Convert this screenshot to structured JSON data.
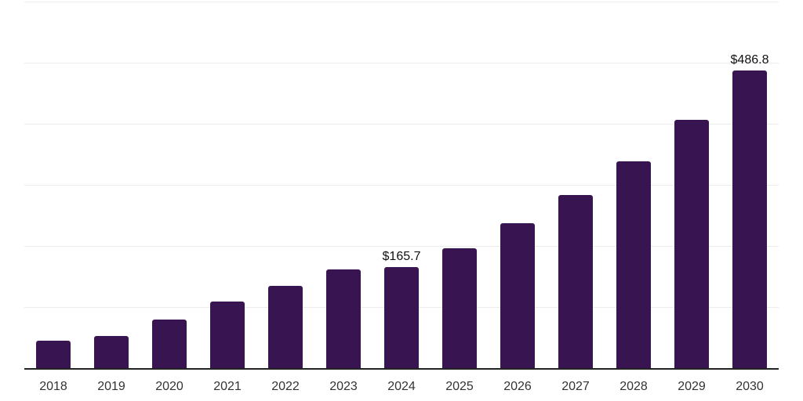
{
  "chart_data": {
    "type": "bar",
    "title": "",
    "categories": [
      "2018",
      "2019",
      "2020",
      "2021",
      "2022",
      "2023",
      "2024",
      "2025",
      "2026",
      "2027",
      "2028",
      "2029",
      "2030"
    ],
    "values": [
      45.3,
      53.0,
      79.1,
      109.0,
      134.6,
      161.5,
      165.7,
      196.8,
      237.2,
      283.0,
      338.5,
      406.8,
      486.8
    ],
    "data_labels": {
      "2024": "$165.7",
      "2030": "$486.8"
    },
    "xlabel": "",
    "ylabel": "",
    "ylim": [
      0,
      600
    ],
    "gridline_values": [
      100,
      200,
      300,
      400,
      500,
      600
    ],
    "grid": "horizontal",
    "legend_position": "none",
    "y_tick_labels_visible": false,
    "colors": {
      "bar": "#381550",
      "axis": "#222222",
      "gridline": "#ececec",
      "value_label": "#111111",
      "tick_label": "#333333",
      "background": "#ffffff"
    }
  }
}
